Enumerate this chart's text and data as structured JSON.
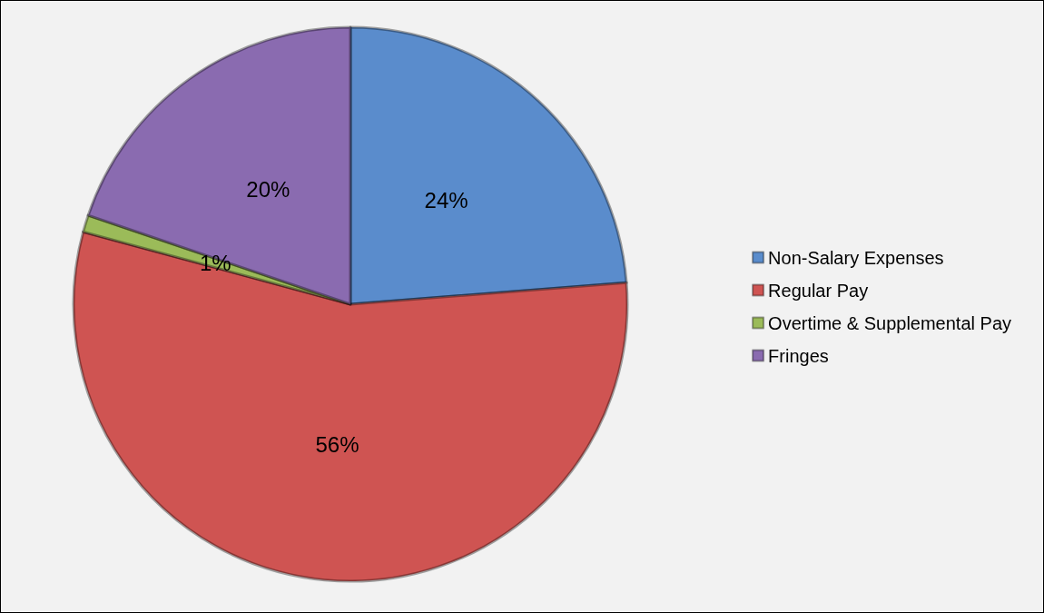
{
  "chart_data": {
    "type": "pie",
    "categories": [
      "Non-Salary Expenses",
      "Regular Pay",
      "Overtime & Supplemental Pay",
      "Fringes"
    ],
    "values": [
      24,
      56,
      1,
      20
    ],
    "value_labels": [
      "24%",
      "56%",
      "1%",
      "20%"
    ],
    "colors": [
      "#5a8ccc",
      "#cf5452",
      "#9bbb59",
      "#8a6bb0"
    ],
    "legend": "right"
  }
}
